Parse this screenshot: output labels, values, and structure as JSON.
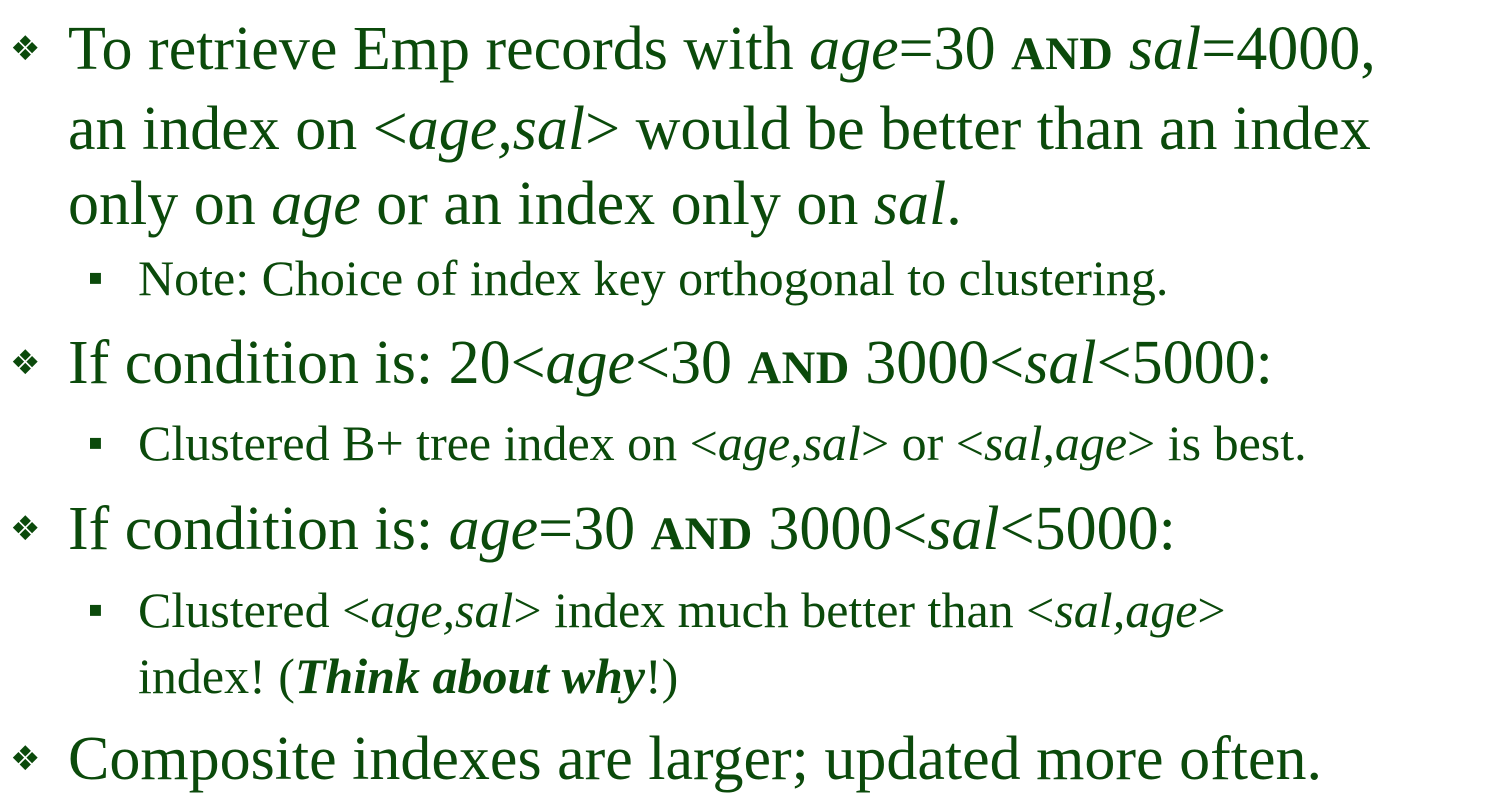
{
  "marker_primary": "❖",
  "marker_secondary": "▪",
  "p1": {
    "l1_a": "To retrieve Emp records with ",
    "l1_b": "age",
    "l1_c": "=30 ",
    "l1_d": "AND",
    "l1_e": " ",
    "l1_f": "sal",
    "l1_g": "=4000,",
    "l2_a": "an index on <",
    "l2_b": "age,sal",
    "l2_c": "> would be better than an index",
    "l3_a": "only on ",
    "l3_b": "age",
    "l3_c": " or an index only on ",
    "l3_d": "sal",
    "l3_e": "."
  },
  "p1_sub": {
    "text": "Note: Choice of index key orthogonal to clustering."
  },
  "p2": {
    "a": "If condition is:  20<",
    "b": "age",
    "c": "<30 ",
    "d": "AND",
    "e": " 3000<",
    "f": "sal",
    "g": "<5000:"
  },
  "p2_sub": {
    "a": "Clustered B+ tree index on <",
    "b": "age,sal",
    "c": "> or <",
    "d": "sal,age",
    "e": "> is best."
  },
  "p3": {
    "a": "If condition is:  ",
    "b": "age",
    "c": "=30 ",
    "d": "AND",
    "e": " 3000<",
    "f": "sal",
    "g": "<5000:"
  },
  "p3_sub": {
    "l1_a": "Clustered <",
    "l1_b": "age,sal",
    "l1_c": "> index much better than <",
    "l1_d": "sal,age",
    "l1_e": ">",
    "l2_a": "index!  (",
    "l2_b": "Think about why",
    "l2_c": "!)"
  },
  "p4": {
    "text": "Composite indexes are larger; updated more often."
  }
}
